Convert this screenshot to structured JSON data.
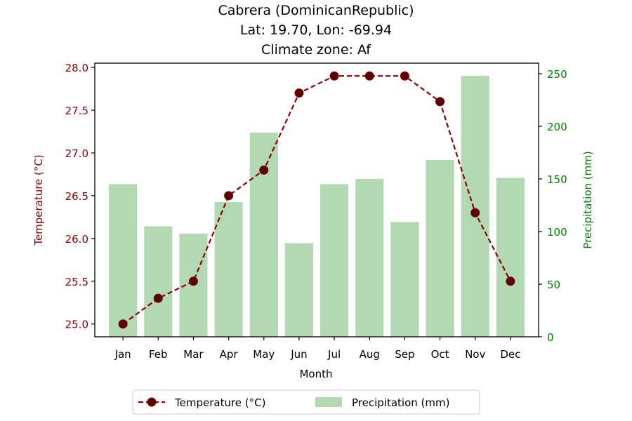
{
  "chart_data": {
    "type": "bar+line",
    "title_lines": [
      "Cabrera (DominicanRepublic)",
      "Lat: 19.70, Lon: -69.94",
      "Climate zone: Af"
    ],
    "xlabel": "Month",
    "ylabel_left": "Temperature (°C)",
    "ylabel_right": "Precipitation (mm)",
    "categories": [
      "Jan",
      "Feb",
      "Mar",
      "Apr",
      "May",
      "Jun",
      "Jul",
      "Aug",
      "Sep",
      "Oct",
      "Nov",
      "Dec"
    ],
    "temperature": {
      "name": "Temperature (°C)",
      "values": [
        25.0,
        25.3,
        25.5,
        26.5,
        26.8,
        27.7,
        27.9,
        27.9,
        27.9,
        27.6,
        26.3,
        25.5
      ],
      "ylim": [
        24.85,
        28.05
      ],
      "ticks": [
        "25.0",
        "25.5",
        "26.0",
        "26.5",
        "27.0",
        "27.5",
        "28.0"
      ],
      "color": "#8b0000",
      "line_style": "dashed",
      "marker": "circle"
    },
    "precipitation": {
      "name": "Precipitation (mm)",
      "values": [
        145,
        105,
        98,
        128,
        194,
        89,
        145,
        150,
        109,
        168,
        248,
        151
      ],
      "ylim": [
        0,
        260
      ],
      "ticks": [
        "0",
        "50",
        "100",
        "150",
        "200",
        "250"
      ],
      "color": "#b2d9b2",
      "axis_color": "#008000"
    },
    "grid": false,
    "legend_placement": "bottom-center"
  }
}
